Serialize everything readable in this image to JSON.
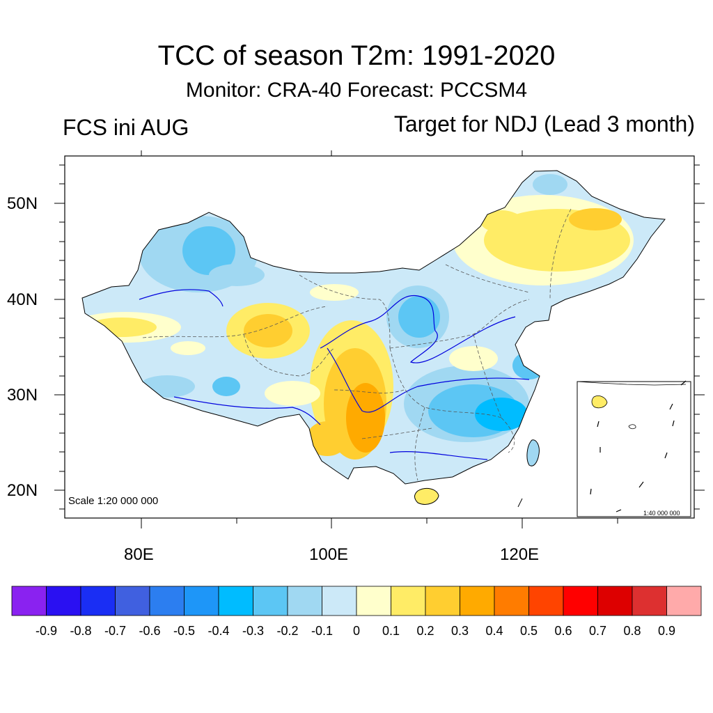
{
  "title": "TCC of season T2m: 1991-2020",
  "subtitle": "Monitor: CRA-40   Forecast: PCCSM4",
  "left_label": "FCS ini AUG",
  "right_label": "Target for NDJ (Lead 3 month)",
  "lat_labels": [
    "50N",
    "40N",
    "30N",
    "20N"
  ],
  "lon_labels": [
    "80E",
    "100E",
    "120E"
  ],
  "scale_main": "Scale 1:20 000 000",
  "scale_inset": "1:40 000 000",
  "map_extent": {
    "lon_min": 72,
    "lon_max": 138,
    "lat_min": 17,
    "lat_max": 55
  },
  "colorbar": {
    "labels": [
      "-0.9",
      "-0.8",
      "-0.7",
      "-0.6",
      "-0.5",
      "-0.4",
      "-0.3",
      "-0.2",
      "-0.1",
      "0",
      "0.1",
      "0.2",
      "0.3",
      "0.4",
      "0.5",
      "0.6",
      "0.7",
      "0.8",
      "0.9"
    ],
    "colors": [
      "#8a22f0",
      "#2a10f2",
      "#1a2ef4",
      "#4060e0",
      "#2c7ef0",
      "#1e96f8",
      "#00bcff",
      "#5cc6f4",
      "#a0d8f2",
      "#cce9f8",
      "#ffffcc",
      "#ffec66",
      "#ffce30",
      "#ffaa00",
      "#ff7c00",
      "#ff4400",
      "#ff0000",
      "#dd0000",
      "#dd3030",
      "#ffaaaa"
    ]
  },
  "colors": {
    "positive_weak": "#ffffcc",
    "positive_mid": "#ffec66",
    "positive_strong": "#ffce30",
    "positive_max": "#ffaa00",
    "negative_weak": "#cce9f8",
    "negative_mid": "#a0d8f2",
    "negative_strong": "#5cc6f4",
    "negative_max": "#00bcff",
    "rivers": "#0000dd"
  }
}
